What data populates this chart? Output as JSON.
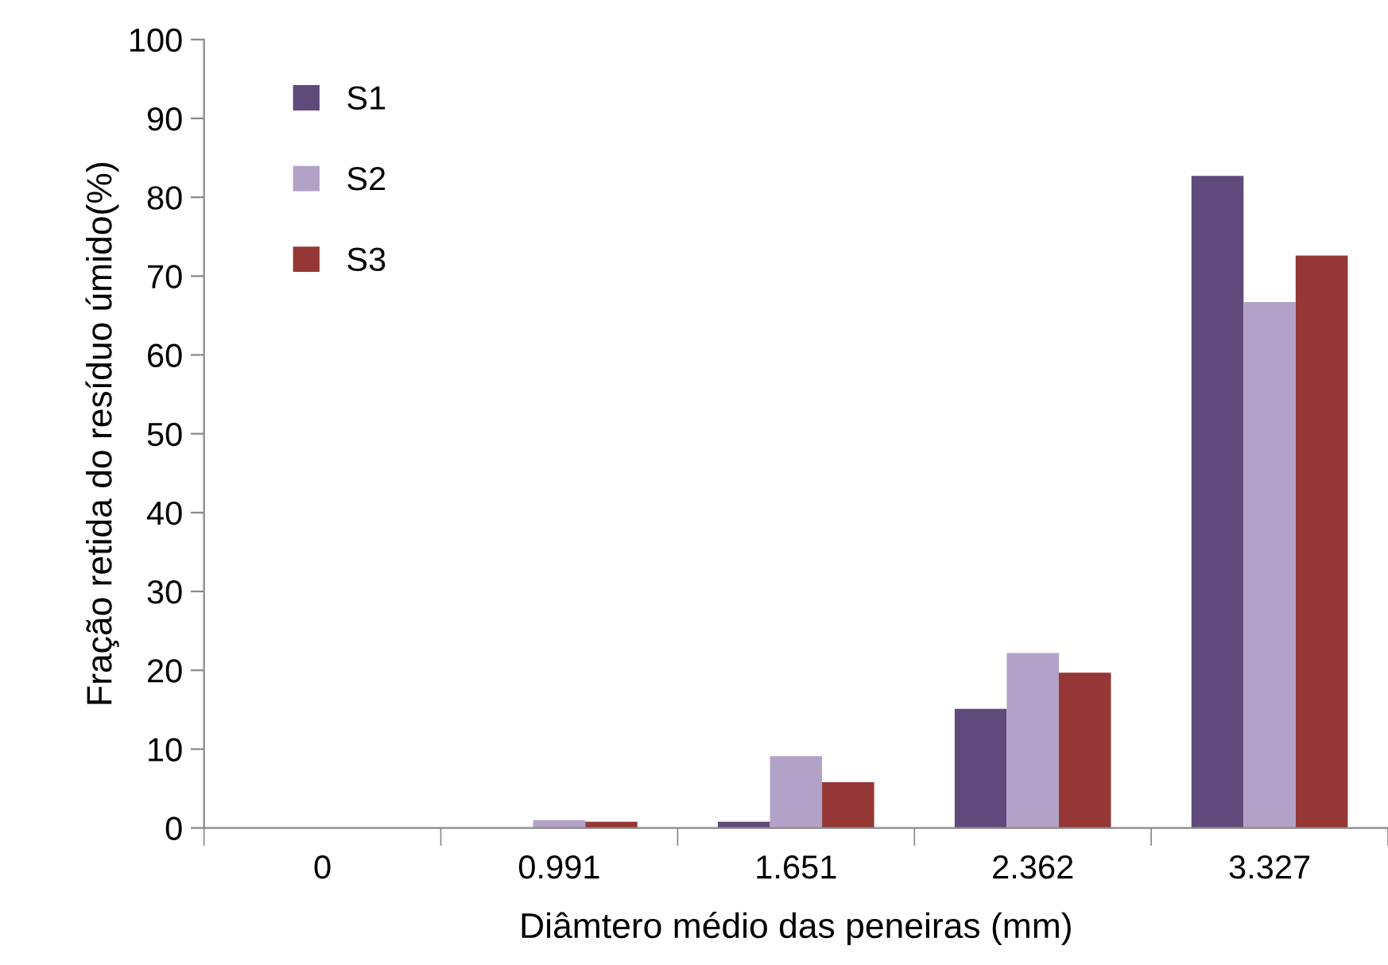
{
  "chart_data": {
    "type": "bar",
    "xlabel": "Diâmtero médio das peneiras (mm)",
    "ylabel": "Fração retida do resíduo úmido(%)",
    "categories": [
      "0",
      "0.991",
      "1.651",
      "2.362",
      "3.327"
    ],
    "series": [
      {
        "name": "S1",
        "color": "#604a7b",
        "values": [
          0,
          0,
          0.8,
          15.1,
          82.7
        ]
      },
      {
        "name": "S2",
        "color": "#b3a2c7",
        "values": [
          0,
          1.0,
          9.1,
          22.2,
          66.7
        ]
      },
      {
        "name": "S3",
        "color": "#953735",
        "values": [
          0,
          0.8,
          5.8,
          19.7,
          72.6
        ]
      }
    ],
    "ylim": [
      0,
      100
    ],
    "yticks": [
      0,
      10,
      20,
      30,
      40,
      50,
      60,
      70,
      80,
      90,
      100
    ],
    "grid": false,
    "legend": "top left"
  }
}
